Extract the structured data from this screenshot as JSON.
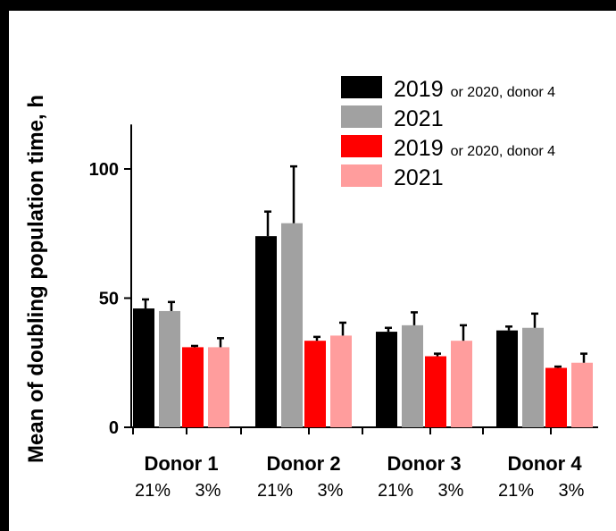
{
  "chart_data": {
    "type": "bar",
    "ylabel": "Mean of doubling population time, h",
    "xlabel": "",
    "ylim": [
      0,
      120
    ],
    "yticks": [
      0,
      50,
      100
    ],
    "categories": [
      "Donor 1",
      "Donor 2",
      "Donor 3",
      "Donor 4"
    ],
    "sublabels": [
      "21%",
      "3%"
    ],
    "series": [
      {
        "values": [
          46,
          74,
          37,
          37.5
        ],
        "errors": [
          3.5,
          9.5,
          1.5,
          1.5
        ],
        "color": "#000000"
      },
      {
        "values": [
          45,
          79,
          39.5,
          38.5
        ],
        "errors": [
          3.5,
          22,
          5,
          5.5
        ],
        "color": "#a1a1a1"
      },
      {
        "values": [
          31,
          33.5,
          27.5,
          23
        ],
        "errors": [
          0.5,
          1.5,
          1,
          0.5
        ],
        "color": "#ff0000"
      },
      {
        "values": [
          31,
          35.5,
          33.5,
          25
        ],
        "errors": [
          3.5,
          5,
          6,
          3.5
        ],
        "color": "#ff9d9d"
      }
    ],
    "legend": {
      "placement": "top-right",
      "entries": [
        {
          "main": "2019",
          "note": "or 2020, donor 4",
          "color": "#000000"
        },
        {
          "main": "2021",
          "note": "",
          "color": "#a1a1a1"
        },
        {
          "main": "2019",
          "note": "or 2020, donor 4",
          "color": "#ff0000"
        },
        {
          "main": "2021",
          "note": "",
          "color": "#ff9d9d"
        }
      ]
    },
    "grid": false
  }
}
